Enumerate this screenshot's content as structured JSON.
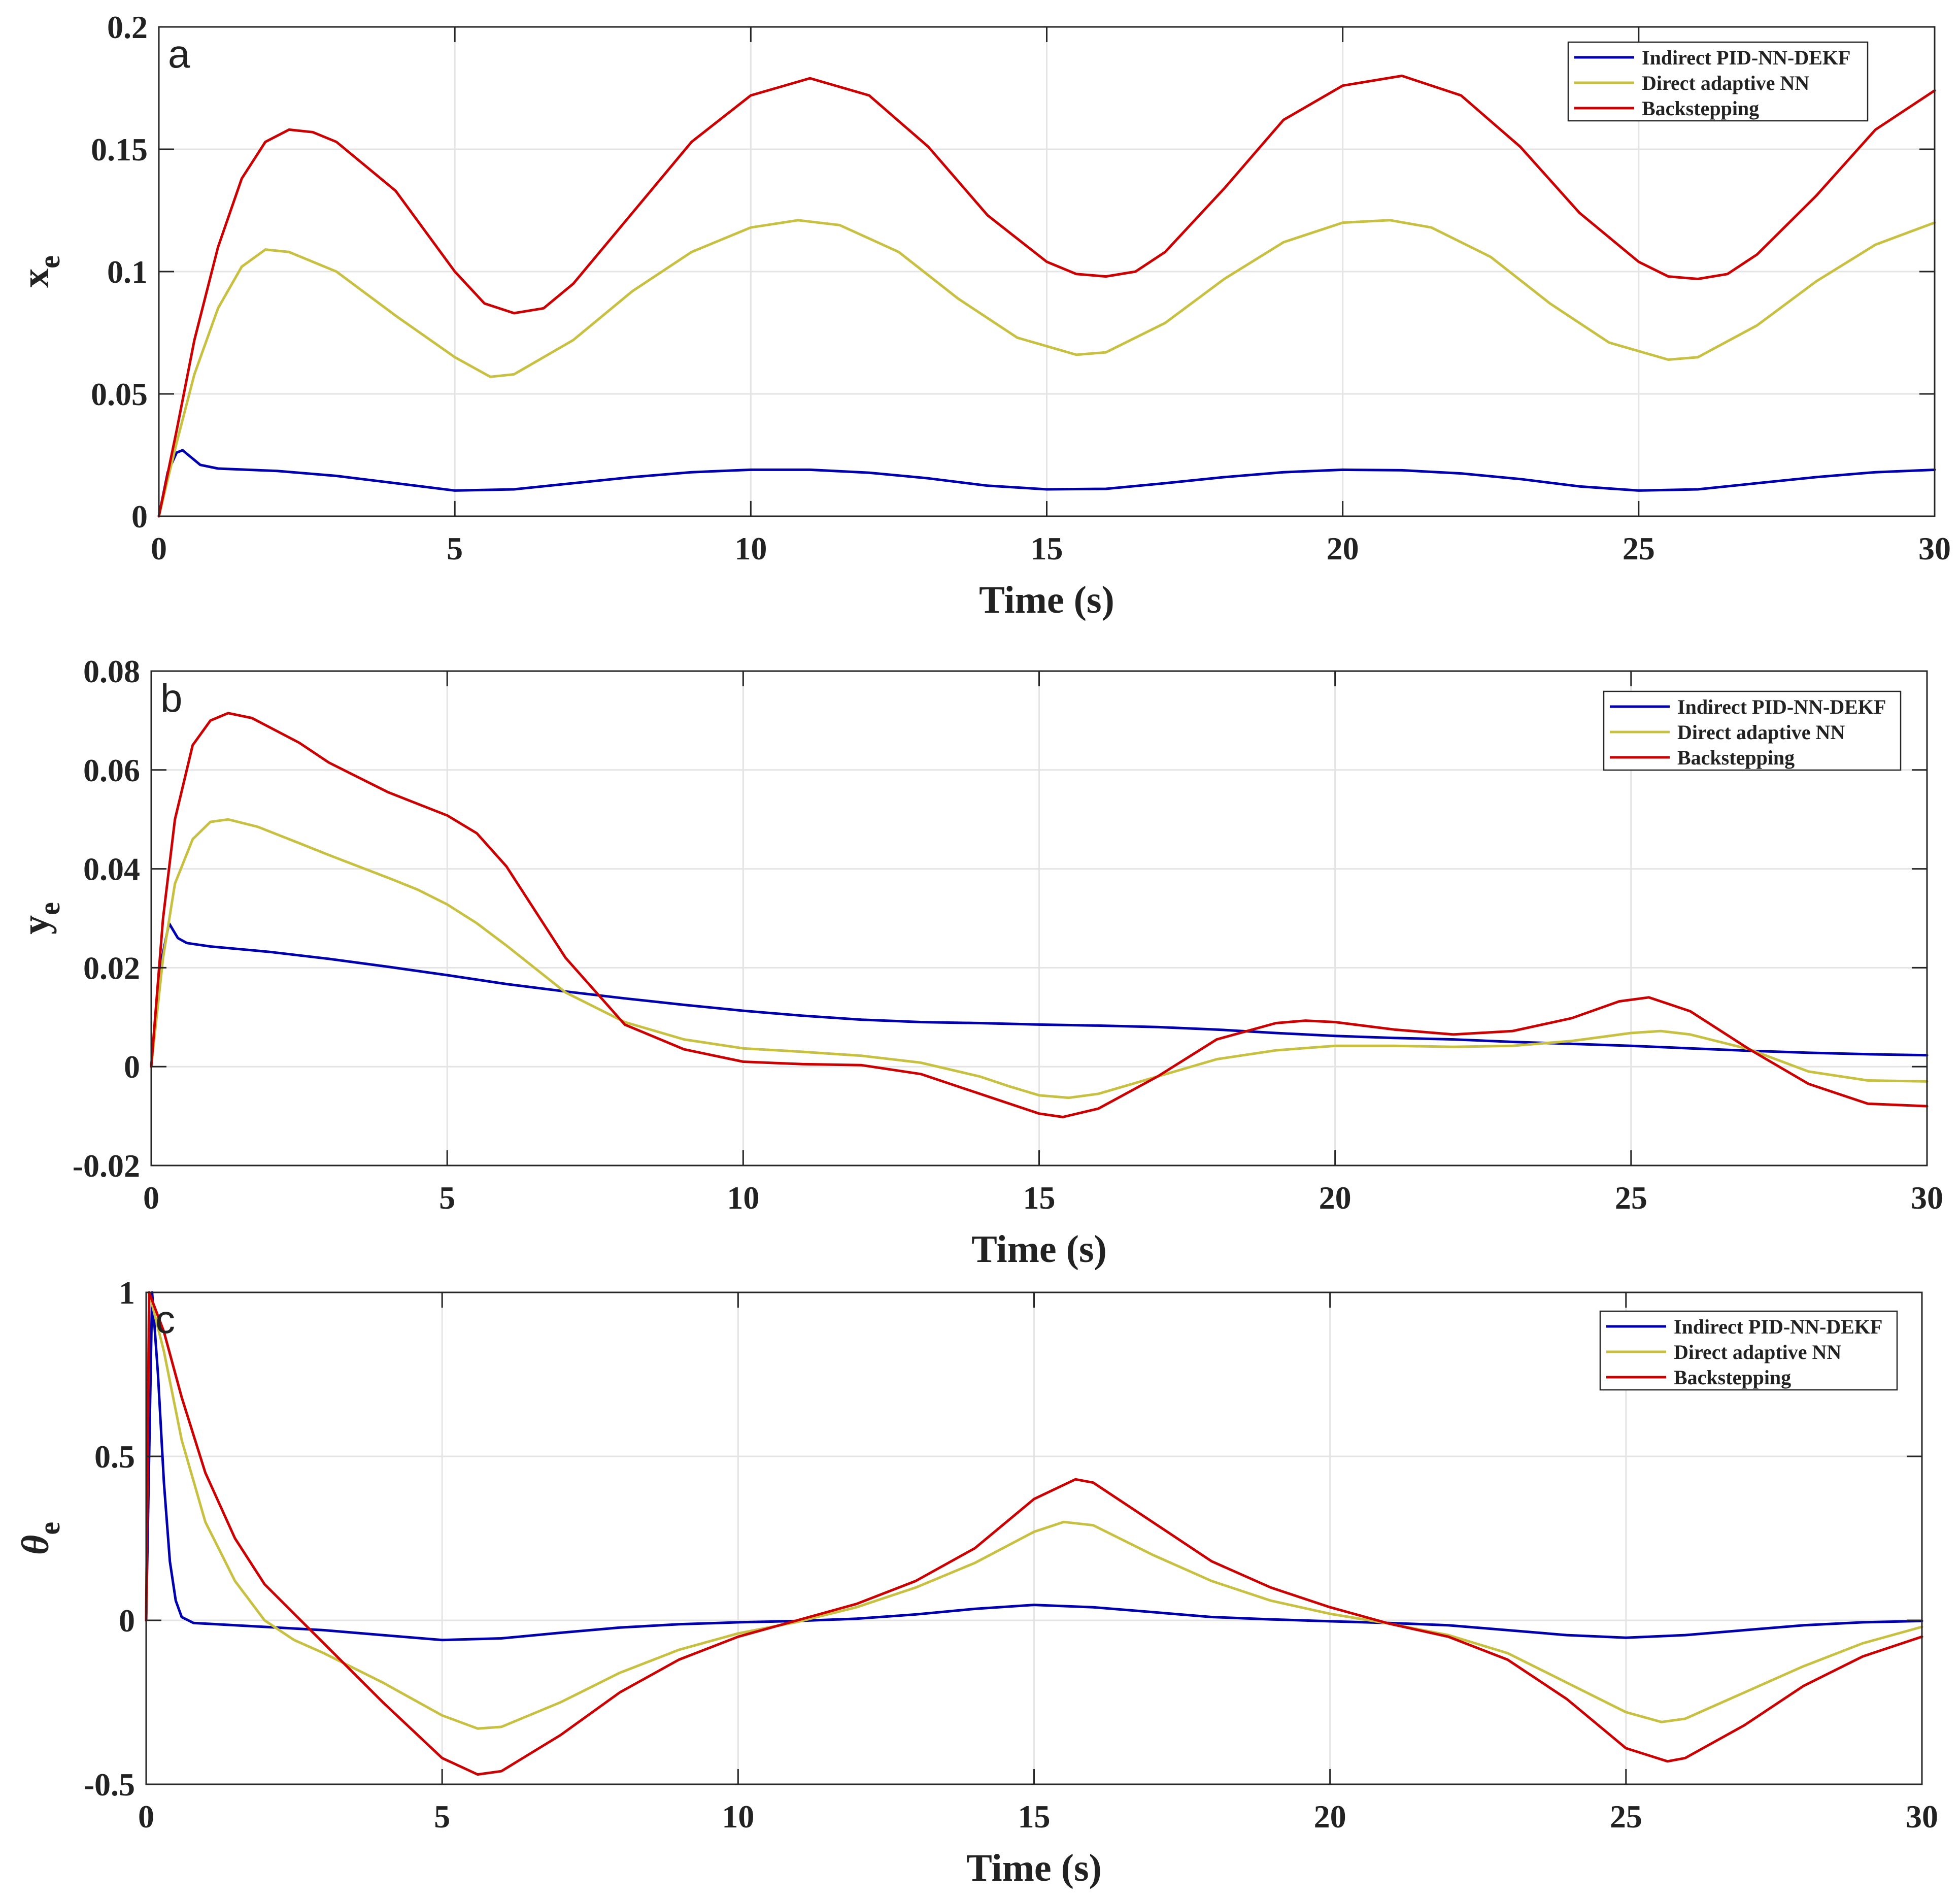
{
  "chart_data": [
    {
      "type": "line",
      "panel_label": "a",
      "xlabel": "Time (s)",
      "ylabel": "x",
      "ylabel_sub": "e",
      "ylabel_italic": false,
      "xlim": [
        0,
        30
      ],
      "ylim": [
        0,
        0.2
      ],
      "xticks": [
        0,
        5,
        10,
        15,
        20,
        25,
        30
      ],
      "xtick_labels": [
        "0",
        "5",
        "10",
        "15",
        "20",
        "25",
        "30"
      ],
      "yticks": [
        0,
        0.05,
        0.1,
        0.15,
        0.2
      ],
      "ytick_labels": [
        "0",
        "0.05",
        "0.1",
        "0.15",
        "0.2"
      ],
      "grid": true,
      "legend_position": "top-right",
      "series": [
        {
          "name": "Indirect PID-NN-DEKF",
          "color": "#0000b0",
          "x": [
            0,
            0.15,
            0.3,
            0.4,
            0.55,
            0.7,
            1,
            2,
            3,
            4,
            5,
            6,
            7,
            8,
            9,
            10,
            11,
            12,
            13,
            14,
            15,
            16,
            17,
            18,
            19,
            20,
            21,
            22,
            23,
            24,
            25,
            26,
            27,
            28,
            29,
            30
          ],
          "y": [
            0,
            0.018,
            0.026,
            0.027,
            0.024,
            0.021,
            0.0195,
            0.0185,
            0.0165,
            0.0135,
            0.0105,
            0.011,
            0.0135,
            0.016,
            0.018,
            0.019,
            0.019,
            0.0178,
            0.0155,
            0.0125,
            0.011,
            0.0112,
            0.0135,
            0.016,
            0.018,
            0.019,
            0.0188,
            0.0175,
            0.0152,
            0.0122,
            0.0105,
            0.011,
            0.0135,
            0.016,
            0.018,
            0.019
          ]
        },
        {
          "name": "Direct adaptive NN",
          "color": "#c8c040",
          "x": [
            0,
            0.3,
            0.6,
            1,
            1.4,
            1.8,
            2.2,
            3,
            4,
            5,
            5.6,
            6,
            7,
            8,
            9,
            10,
            10.8,
            11.5,
            12.5,
            13.5,
            14.5,
            15.5,
            16,
            17,
            18,
            19,
            20,
            20.8,
            21.5,
            22.5,
            23.5,
            24.5,
            25.5,
            26,
            27,
            28,
            29,
            30
          ],
          "y": [
            0,
            0.03,
            0.058,
            0.085,
            0.102,
            0.109,
            0.108,
            0.1,
            0.082,
            0.065,
            0.057,
            0.058,
            0.072,
            0.092,
            0.108,
            0.118,
            0.121,
            0.119,
            0.108,
            0.089,
            0.073,
            0.066,
            0.067,
            0.079,
            0.097,
            0.112,
            0.12,
            0.121,
            0.118,
            0.106,
            0.087,
            0.071,
            0.064,
            0.065,
            0.078,
            0.096,
            0.111,
            0.12
          ]
        },
        {
          "name": "Backstepping",
          "color": "#cc0000",
          "x": [
            0,
            0.3,
            0.6,
            1,
            1.4,
            1.8,
            2.2,
            2.6,
            3,
            4,
            5,
            5.5,
            6,
            6.5,
            7,
            8,
            9,
            10,
            11,
            12,
            13,
            14,
            15,
            15.5,
            16,
            16.5,
            17,
            18,
            19,
            20,
            21,
            22,
            23,
            24,
            25,
            25.5,
            26,
            26.5,
            27,
            28,
            29,
            30
          ],
          "y": [
            0,
            0.035,
            0.072,
            0.11,
            0.138,
            0.153,
            0.158,
            0.157,
            0.153,
            0.133,
            0.1,
            0.087,
            0.083,
            0.085,
            0.095,
            0.124,
            0.153,
            0.172,
            0.179,
            0.172,
            0.151,
            0.123,
            0.104,
            0.099,
            0.098,
            0.1,
            0.108,
            0.134,
            0.162,
            0.176,
            0.18,
            0.172,
            0.151,
            0.124,
            0.104,
            0.098,
            0.097,
            0.099,
            0.107,
            0.131,
            0.158,
            0.174
          ]
        }
      ]
    },
    {
      "type": "line",
      "panel_label": "b",
      "xlabel": "Time (s)",
      "ylabel": "y",
      "ylabel_sub": "e",
      "ylabel_italic": false,
      "xlim": [
        0,
        30
      ],
      "ylim": [
        -0.02,
        0.08
      ],
      "xticks": [
        0,
        5,
        10,
        15,
        20,
        25,
        30
      ],
      "xtick_labels": [
        "0",
        "5",
        "10",
        "15",
        "20",
        "25",
        "30"
      ],
      "yticks": [
        -0.02,
        0,
        0.02,
        0.04,
        0.06,
        0.08
      ],
      "ytick_labels": [
        "-0.02",
        "0",
        "0.02",
        "0.04",
        "0.06",
        "0.08"
      ],
      "grid": true,
      "legend_position": "top-right",
      "series": [
        {
          "name": "Indirect PID-NN-DEKF",
          "color": "#0000b0",
          "x": [
            0,
            0.15,
            0.3,
            0.45,
            0.6,
            1,
            2,
            3,
            4,
            5,
            6,
            7,
            8,
            9,
            10,
            11,
            12,
            13,
            14,
            15,
            16,
            17,
            18,
            19,
            20,
            21,
            22,
            23,
            24,
            25,
            26,
            27,
            28,
            29,
            30
          ],
          "y": [
            0,
            0.02,
            0.029,
            0.026,
            0.025,
            0.0243,
            0.0232,
            0.0218,
            0.0202,
            0.0185,
            0.0167,
            0.0152,
            0.0138,
            0.0125,
            0.0113,
            0.0103,
            0.0095,
            0.009,
            0.0088,
            0.0085,
            0.0083,
            0.008,
            0.0075,
            0.0068,
            0.0062,
            0.0058,
            0.0055,
            0.005,
            0.0046,
            0.0042,
            0.0037,
            0.0032,
            0.0028,
            0.0025,
            0.0023
          ]
        },
        {
          "name": "Direct adaptive NN",
          "color": "#c8c040",
          "x": [
            0,
            0.2,
            0.4,
            0.7,
            1,
            1.3,
            1.8,
            2.5,
            3,
            4,
            4.5,
            5,
            5.5,
            6,
            7,
            8,
            9,
            10,
            11,
            12,
            13,
            14,
            14.5,
            15,
            15.5,
            16,
            17,
            18,
            19,
            20,
            21,
            22,
            23,
            24,
            25,
            25.5,
            26,
            27,
            28,
            29,
            30
          ],
          "y": [
            0,
            0.022,
            0.037,
            0.046,
            0.0495,
            0.05,
            0.0485,
            0.0452,
            0.0428,
            0.0382,
            0.0358,
            0.0328,
            0.029,
            0.0245,
            0.015,
            0.009,
            0.0055,
            0.0037,
            0.003,
            0.0022,
            0.0008,
            -0.002,
            -0.004,
            -0.0058,
            -0.0063,
            -0.0055,
            -0.002,
            0.0015,
            0.0033,
            0.0042,
            0.0042,
            0.004,
            0.0042,
            0.0052,
            0.0068,
            0.0072,
            0.0065,
            0.0035,
            -0.001,
            -0.0028,
            -0.003
          ]
        },
        {
          "name": "Backstepping",
          "color": "#cc0000",
          "x": [
            0,
            0.2,
            0.4,
            0.7,
            1,
            1.3,
            1.7,
            2.5,
            3,
            4,
            5,
            5.5,
            6,
            7,
            8,
            9,
            10,
            11,
            12,
            13,
            14,
            15,
            15.4,
            16,
            17,
            18,
            19,
            19.5,
            20,
            21,
            22,
            23,
            24,
            24.8,
            25.3,
            26,
            27,
            28,
            29,
            30
          ],
          "y": [
            0,
            0.03,
            0.05,
            0.065,
            0.07,
            0.0715,
            0.0705,
            0.0655,
            0.0615,
            0.0555,
            0.0508,
            0.0472,
            0.0405,
            0.022,
            0.0085,
            0.0035,
            0.001,
            0.0005,
            0.0003,
            -0.0015,
            -0.0055,
            -0.0095,
            -0.0102,
            -0.0085,
            -0.002,
            0.0055,
            0.0088,
            0.0093,
            0.009,
            0.0075,
            0.0065,
            0.0072,
            0.0098,
            0.0132,
            0.014,
            0.0112,
            0.0035,
            -0.0035,
            -0.0075,
            -0.008
          ]
        }
      ]
    },
    {
      "type": "line",
      "panel_label": "c",
      "xlabel": "Time (s)",
      "ylabel": "θ",
      "ylabel_sub": "e",
      "ylabel_italic": true,
      "xlim": [
        0,
        30
      ],
      "ylim": [
        -0.5,
        1
      ],
      "xticks": [
        0,
        5,
        10,
        15,
        20,
        25,
        30
      ],
      "xtick_labels": [
        "0",
        "5",
        "10",
        "15",
        "20",
        "25",
        "30"
      ],
      "yticks": [
        -0.5,
        0,
        0.5,
        1
      ],
      "ytick_labels": [
        "-0.5",
        "0",
        "0.5",
        "1"
      ],
      "grid": true,
      "legend_position": "top-right",
      "series": [
        {
          "name": "Indirect PID-NN-DEKF",
          "color": "#0000b0",
          "x": [
            0,
            0.1,
            0.2,
            0.3,
            0.4,
            0.5,
            0.6,
            0.8,
            1.2,
            2,
            3,
            4,
            5,
            6,
            7,
            8,
            9,
            10,
            11,
            12,
            13,
            14,
            15,
            16,
            17,
            18,
            19,
            20,
            21,
            22,
            23,
            24,
            25,
            26,
            27,
            28,
            29,
            30
          ],
          "y": [
            0,
            1,
            0.75,
            0.42,
            0.18,
            0.06,
            0.01,
            -0.008,
            -0.012,
            -0.02,
            -0.03,
            -0.045,
            -0.06,
            -0.055,
            -0.038,
            -0.022,
            -0.012,
            -0.006,
            -0.002,
            0.005,
            0.018,
            0.035,
            0.047,
            0.04,
            0.025,
            0.01,
            0.003,
            -0.003,
            -0.008,
            -0.015,
            -0.03,
            -0.045,
            -0.053,
            -0.045,
            -0.03,
            -0.015,
            -0.006,
            -0.002
          ]
        },
        {
          "name": "Direct adaptive NN",
          "color": "#c8c040",
          "x": [
            0,
            0.05,
            0.3,
            0.6,
            1,
            1.5,
            2,
            2.5,
            3,
            4,
            5,
            5.6,
            6,
            7,
            8,
            9,
            10,
            11,
            12,
            13,
            14,
            15,
            15.5,
            16,
            17,
            18,
            19,
            20,
            21,
            22,
            23,
            24,
            25,
            25.6,
            26,
            27,
            28,
            29,
            30
          ],
          "y": [
            0,
            1,
            0.82,
            0.55,
            0.3,
            0.12,
            0.0,
            -0.06,
            -0.1,
            -0.19,
            -0.29,
            -0.33,
            -0.325,
            -0.25,
            -0.16,
            -0.09,
            -0.04,
            -0.005,
            0.04,
            0.1,
            0.175,
            0.27,
            0.3,
            0.29,
            0.2,
            0.12,
            0.06,
            0.02,
            -0.01,
            -0.045,
            -0.1,
            -0.19,
            -0.28,
            -0.31,
            -0.3,
            -0.22,
            -0.14,
            -0.07,
            -0.02
          ]
        },
        {
          "name": "Backstepping",
          "color": "#cc0000",
          "x": [
            0,
            0.05,
            0.3,
            0.6,
            1,
            1.5,
            2,
            2.5,
            3,
            4,
            5,
            5.6,
            6,
            7,
            8,
            9,
            10,
            11,
            12,
            13,
            14,
            15,
            15.7,
            16,
            17,
            18,
            19,
            20,
            21,
            22,
            23,
            24,
            25,
            25.7,
            26,
            27,
            28,
            29,
            30
          ],
          "y": [
            0,
            1,
            0.88,
            0.68,
            0.45,
            0.25,
            0.11,
            0.02,
            -0.07,
            -0.25,
            -0.42,
            -0.47,
            -0.46,
            -0.35,
            -0.22,
            -0.12,
            -0.05,
            0.0,
            0.05,
            0.12,
            0.22,
            0.37,
            0.43,
            0.42,
            0.3,
            0.18,
            0.1,
            0.04,
            -0.01,
            -0.05,
            -0.12,
            -0.24,
            -0.39,
            -0.43,
            -0.42,
            -0.32,
            -0.2,
            -0.11,
            -0.05
          ]
        }
      ]
    }
  ]
}
